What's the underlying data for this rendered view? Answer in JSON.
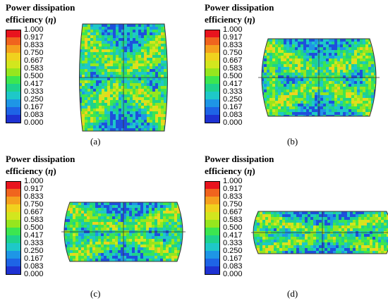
{
  "title_line1": "Power dissipation",
  "title_line2": "efficiency (",
  "title_eta": "η",
  "title_close": ")",
  "legend_values": [
    "1.000",
    "0.917",
    "0.833",
    "0.750",
    "0.667",
    "0.583",
    "0.500",
    "0.417",
    "0.333",
    "0.250",
    "0.167",
    "0.083",
    "0.000"
  ],
  "legend_colors": [
    "#e8141e",
    "#f0641e",
    "#f5a01e",
    "#f0d21e",
    "#d2e61e",
    "#96e61e",
    "#3ce650",
    "#1ed28c",
    "#1ec8c8",
    "#1e96e6",
    "#1e64e6",
    "#1e32d2"
  ],
  "panels": [
    {
      "label": "(a)",
      "shape": "tall"
    },
    {
      "label": "(b)",
      "shape": "mid"
    },
    {
      "label": "(c)",
      "shape": "short"
    },
    {
      "label": "(d)",
      "shape": "flat"
    }
  ]
}
